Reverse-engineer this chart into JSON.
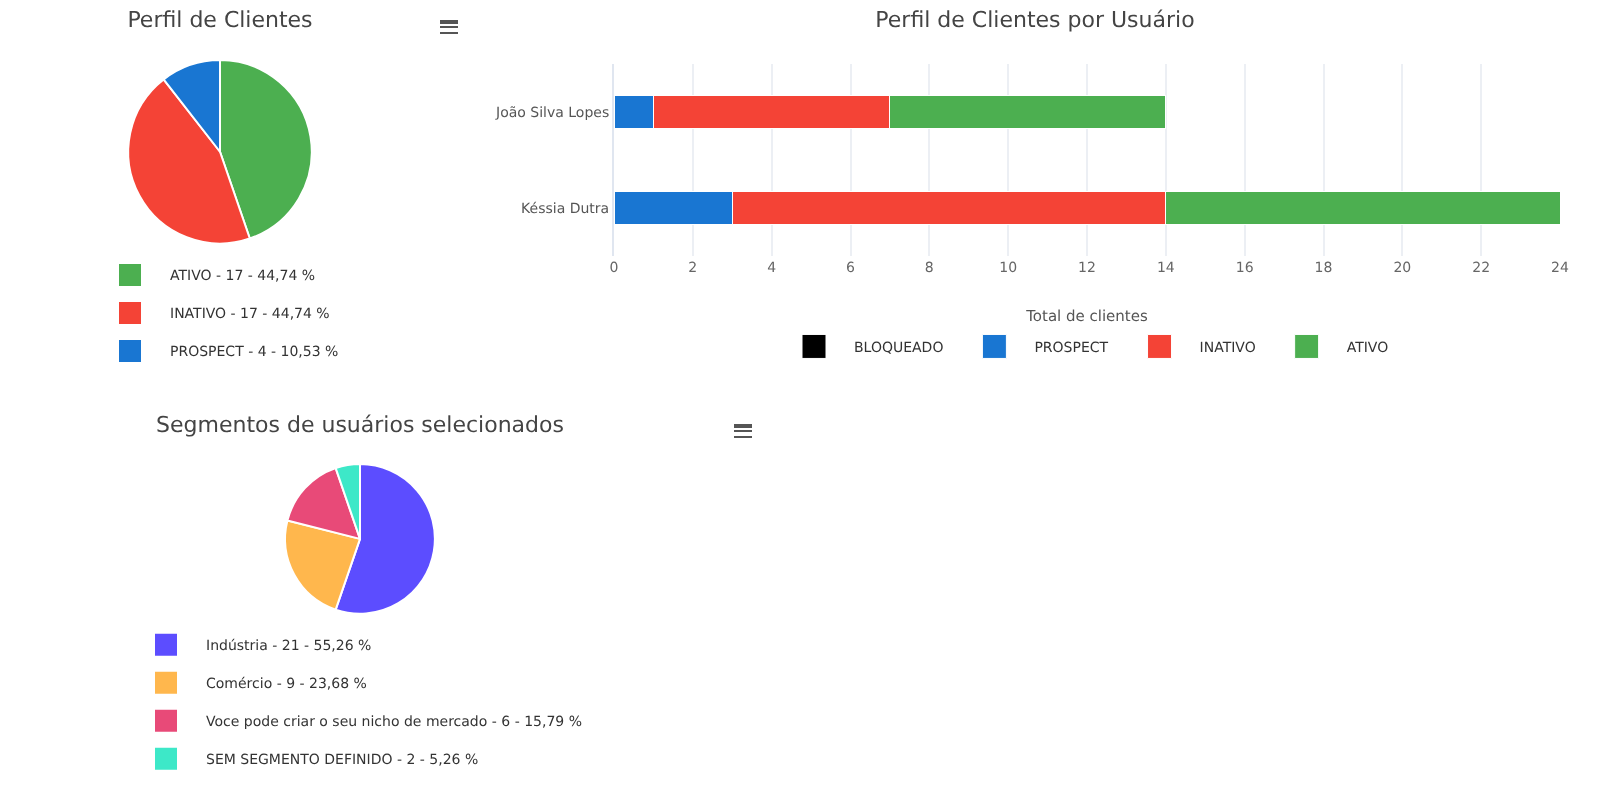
{
  "chart_data": [
    {
      "type": "pie",
      "title": "Perfil de Clientes",
      "categories": [
        "ATIVO - 17 - 44,74 %",
        "INATIVO - 17 - 44,74 %",
        "PROSPECT - 4 - 10,53 %"
      ],
      "values": [
        44.74,
        44.74,
        10.53
      ],
      "colors": [
        "#4caf50",
        "#f44336",
        "#1976d2"
      ],
      "legend": "bottom"
    },
    {
      "type": "bar",
      "title": "Perfil de Clientes por Usuário",
      "orientation": "horizontal",
      "stacked": true,
      "categories": [
        "João Silva Lopes",
        "Késsia Dutra"
      ],
      "xlabel": "Total de clientes",
      "xlim": [
        0,
        24
      ],
      "xticks": [
        0,
        2,
        4,
        6,
        8,
        10,
        12,
        14,
        16,
        18,
        20,
        22,
        24
      ],
      "grid": "x",
      "legend": "bottom",
      "series": [
        {
          "name": "BLOQUEADO",
          "color": "#000000",
          "values": [
            0,
            0
          ]
        },
        {
          "name": "PROSPECT",
          "color": "#1976d2",
          "values": [
            1,
            3
          ]
        },
        {
          "name": "INATIVO",
          "color": "#f44336",
          "values": [
            6,
            11
          ]
        },
        {
          "name": "ATIVO",
          "color": "#4caf50",
          "values": [
            7,
            10
          ]
        }
      ]
    },
    {
      "type": "pie",
      "title": "Segmentos de usuários selecionados",
      "categories": [
        "Indústria - 21 - 55,26 %",
        "Comércio - 9 - 23,68 %",
        "Voce pode criar o seu nicho de mercado - 6 - 15,79 %",
        "SEM SEGMENTO DEFINIDO - 2 - 5,26 %"
      ],
      "values": [
        55.26,
        23.68,
        15.79,
        5.26
      ],
      "colors": [
        "#5c4dff",
        "#ffb74d",
        "#e84a78",
        "#3de8c8"
      ],
      "legend": "bottom"
    }
  ]
}
